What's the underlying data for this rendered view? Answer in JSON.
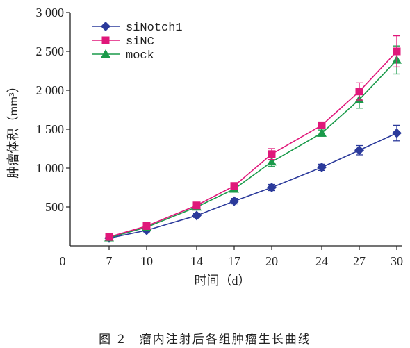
{
  "chart_data": {
    "type": "line",
    "x": [
      7,
      10,
      14,
      17,
      20,
      24,
      27,
      30
    ],
    "xlim": [
      0,
      30
    ],
    "ylim": [
      0,
      3000
    ],
    "y_ticks": [
      500,
      1000,
      1500,
      2000,
      2500,
      3000
    ],
    "y_tick_labels": [
      "500",
      "1 000",
      "1 500",
      "2 000",
      "2 500",
      "3 000"
    ],
    "x_origin_label": "0",
    "xlabel": "时间（d）",
    "ylabel": "肿瘤体积（mm³）",
    "legend_position": "top-left",
    "grid": false,
    "series": [
      {
        "name": "siNotch1",
        "color": "#2b3a9b",
        "marker": "diamond",
        "values": [
          100,
          200,
          390,
          575,
          750,
          1010,
          1230,
          1450
        ],
        "errors": [
          15,
          20,
          25,
          35,
          40,
          40,
          60,
          100
        ]
      },
      {
        "name": "siNC",
        "color": "#e0177a",
        "marker": "square",
        "values": [
          115,
          255,
          520,
          770,
          1180,
          1550,
          1985,
          2500
        ],
        "errors": [
          15,
          20,
          20,
          25,
          70,
          40,
          110,
          200
        ]
      },
      {
        "name": "mock",
        "color": "#1a9a4a",
        "marker": "triangle",
        "values": [
          105,
          240,
          500,
          730,
          1080,
          1450,
          1880,
          2390
        ],
        "errors": [
          15,
          20,
          20,
          25,
          60,
          40,
          110,
          180
        ]
      }
    ]
  },
  "caption": {
    "figure_label": "图 2",
    "title": "瘤内注射后各组肿瘤生长曲线"
  }
}
